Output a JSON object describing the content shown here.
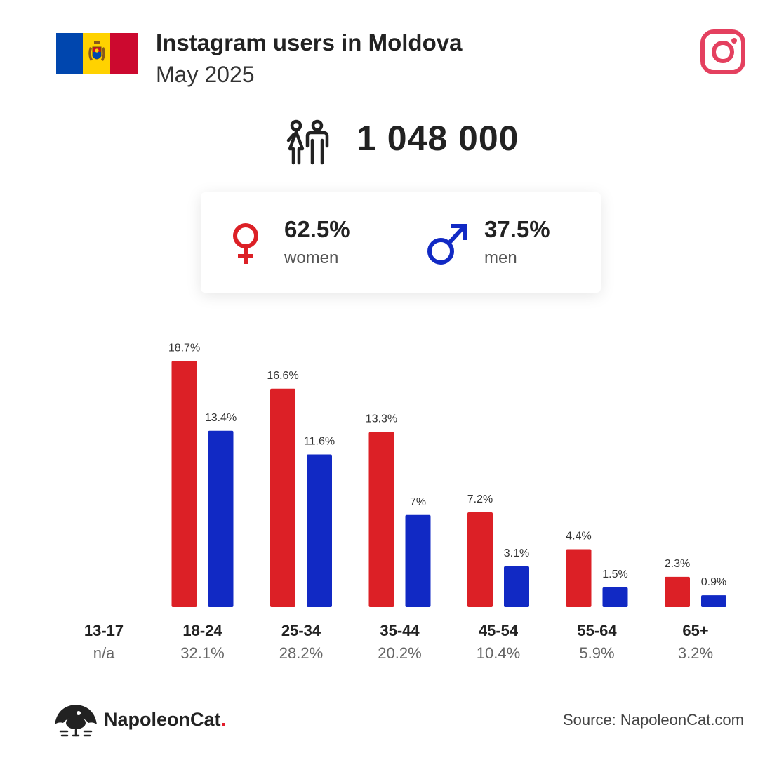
{
  "header": {
    "title": "Instagram users in Moldova",
    "subtitle": "May 2025"
  },
  "total": {
    "value": "1 048 000",
    "icon": "people-icon"
  },
  "gender": {
    "women": {
      "pct": "62.5%",
      "label": "women",
      "icon": "female-symbol-icon",
      "color": "#dc2026"
    },
    "men": {
      "pct": "37.5%",
      "label": "men",
      "icon": "male-symbol-icon",
      "color": "#1129c4"
    }
  },
  "colors": {
    "women": "#dc2026",
    "men": "#1129c4",
    "instagram": "#e4405f",
    "flag_blue": "#0046ae",
    "flag_yellow": "#ffd200",
    "flag_red": "#cc092f"
  },
  "chart_data": {
    "type": "bar",
    "categories": [
      "13-17",
      "18-24",
      "25-34",
      "35-44",
      "45-54",
      "55-64",
      "65+"
    ],
    "category_totals": [
      "n/a",
      "32.1%",
      "28.2%",
      "20.2%",
      "10.4%",
      "5.9%",
      "3.2%"
    ],
    "series": [
      {
        "name": "women",
        "color": "#dc2026",
        "values": [
          null,
          18.7,
          16.6,
          13.3,
          7.2,
          4.4,
          2.3
        ],
        "labels": [
          "",
          "18.7%",
          "16.6%",
          "13.3%",
          "7.2%",
          "4.4%",
          "2.3%"
        ]
      },
      {
        "name": "men",
        "color": "#1129c4",
        "values": [
          null,
          13.4,
          11.6,
          7,
          3.1,
          1.5,
          0.9
        ],
        "labels": [
          "",
          "13.4%",
          "11.6%",
          "7%",
          "3.1%",
          "1.5%",
          "0.9%"
        ]
      }
    ],
    "title": "",
    "xlabel": "",
    "ylabel": "",
    "grid": false,
    "legend": "none"
  },
  "footer": {
    "brand": "NapoleonCat",
    "brand_dot": ".",
    "source": "Source: NapoleonCat.com"
  }
}
